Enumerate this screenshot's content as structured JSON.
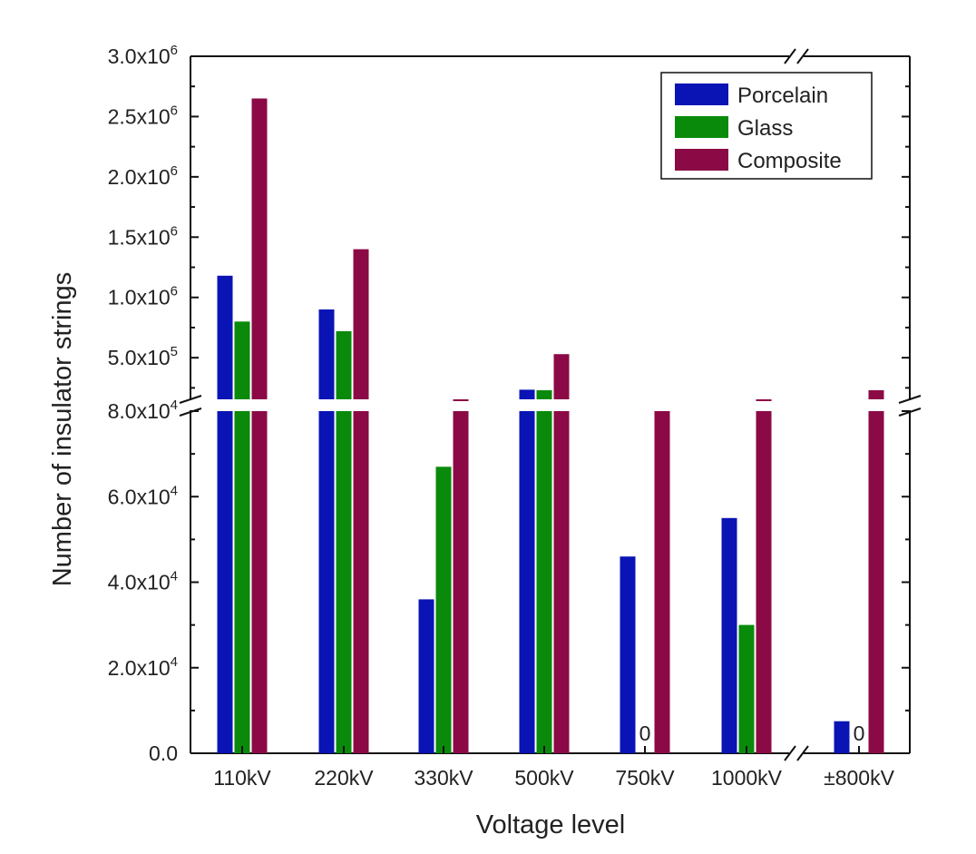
{
  "chart_data": {
    "type": "bar",
    "title": "",
    "xlabel": "Voltage level",
    "ylabel": "Number of insulator strings",
    "categories": [
      "110kV",
      "220kV",
      "330kV",
      "500kV",
      "750kV",
      "1000kV",
      "±800kV"
    ],
    "series": [
      {
        "name": "Porcelain",
        "color": "#0a14b4",
        "values": [
          1180000,
          900000,
          36000,
          235000,
          46000,
          55000,
          7500
        ]
      },
      {
        "name": "Glass",
        "color": "#0a8a0a",
        "values": [
          800000,
          720000,
          67000,
          230000,
          0,
          30000,
          0
        ]
      },
      {
        "name": "Composite",
        "color": "#8b0a46",
        "values": [
          2650000,
          1400000,
          155000,
          530000,
          80000,
          155000,
          230000
        ]
      }
    ],
    "zero_labels": [
      "0",
      "0"
    ],
    "y_axis": {
      "break": true,
      "lower_range": [
        0,
        80000
      ],
      "upper_range": [
        155000,
        3000000
      ],
      "lower_ticks": [
        "0.0",
        "2.0x10",
        "4.0x10",
        "6.0x10",
        "8.0x10"
      ],
      "lower_tick_exponents": [
        "",
        "4",
        "4",
        "4",
        "4"
      ],
      "upper_ticks": [
        "5.0x10",
        "1.0x10",
        "1.5x10",
        "2.0x10",
        "2.5x10",
        "3.0x10"
      ],
      "upper_tick_exponents": [
        "5",
        "6",
        "6",
        "6",
        "6",
        "6"
      ]
    },
    "x_axis_break_after_category": "1000kV",
    "legend_position": "top-right",
    "grid": false
  }
}
